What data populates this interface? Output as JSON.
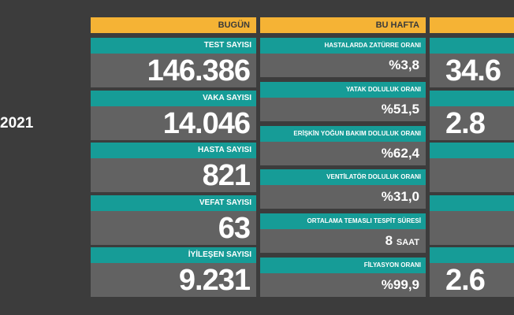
{
  "side": {
    "year": "2021"
  },
  "today": {
    "title": "BUGÜN",
    "items": [
      {
        "label": "TEST SAYISI",
        "value": "146.386"
      },
      {
        "label": "VAKA SAYISI",
        "value": "14.046"
      },
      {
        "label": "HASTA SAYISI",
        "value": "821"
      },
      {
        "label": "VEFAT SAYISI",
        "value": "63"
      },
      {
        "label": "İYİLEŞEN SAYISI",
        "value": "9.231"
      }
    ]
  },
  "week": {
    "title": "BU HAFTA",
    "items": [
      {
        "label": "HASTALARDA ZATÜRRE ORANI",
        "value": "%3,8"
      },
      {
        "label": "YATAK DOLULUK ORANI",
        "value": "%51,5"
      },
      {
        "label": "ERİŞKİN YOĞUN BAKIM DOLULUK ORANI",
        "value": "%62,4"
      },
      {
        "label": "VENTİLATÖR DOLULUK ORANI",
        "value": "%31,0"
      },
      {
        "label": "ORTALAMA TEMASLI TESPİT SÜRESİ",
        "value": "8",
        "unit": "SAAT"
      },
      {
        "label": "FİLYASYON ORANI",
        "value": "%99,9"
      }
    ]
  },
  "total": {
    "values": [
      "34.6",
      "2.8",
      "2.6"
    ]
  }
}
